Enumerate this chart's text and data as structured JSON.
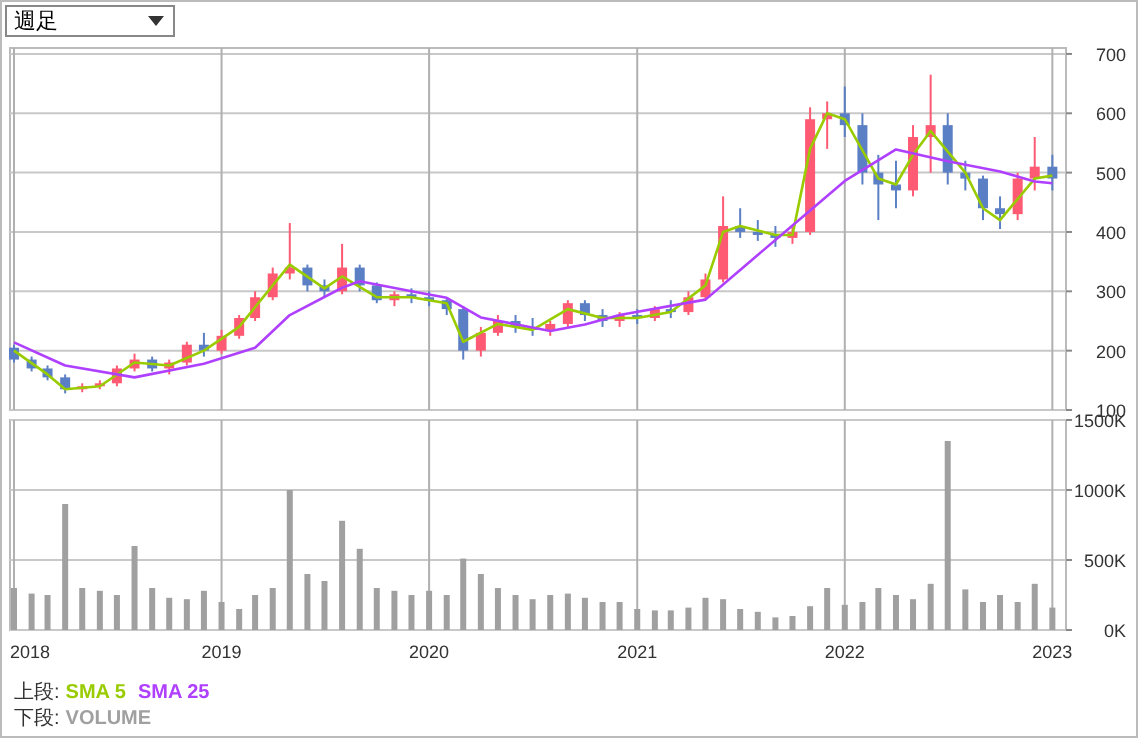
{
  "chart_data": [
    {
      "type": "candlestick",
      "annotations": [
        "週足"
      ],
      "legend": "bottom left",
      "legend_title": "上段:",
      "grid": true,
      "tick_labels": "y",
      "xlim": [
        "2017-12-25",
        "2023-01-25"
      ],
      "xticks": [
        {
          "value": "2018-01-01",
          "label": null
        },
        {
          "value": "2019-01-01",
          "label": null
        },
        {
          "value": "2020-01-01",
          "label": null
        },
        {
          "value": "2021-01-01",
          "label": null
        },
        {
          "value": "2022-01-01",
          "label": null
        },
        {
          "value": "2023-01-01",
          "label": null
        }
      ],
      "ylim": [
        100,
        710
      ],
      "yticks": [
        100,
        200,
        300,
        400,
        500,
        600,
        700
      ],
      "x": [
        "2018-01",
        "2018-02",
        "2018-03",
        "2018-04",
        "2018-05",
        "2018-06",
        "2018-07",
        "2018-08",
        "2018-09",
        "2018-10",
        "2018-11",
        "2018-12",
        "2019-01",
        "2019-02",
        "2019-03",
        "2019-04",
        "2019-05",
        "2019-06",
        "2019-07",
        "2019-08",
        "2019-09",
        "2019-10",
        "2019-11",
        "2019-12",
        "2020-01",
        "2020-02",
        "2020-03",
        "2020-04",
        "2020-05",
        "2020-06",
        "2020-07",
        "2020-08",
        "2020-09",
        "2020-10",
        "2020-11",
        "2020-12",
        "2021-01",
        "2021-02",
        "2021-03",
        "2021-04",
        "2021-05",
        "2021-06",
        "2021-07",
        "2021-08",
        "2021-09",
        "2021-10",
        "2021-11",
        "2021-12",
        "2022-01",
        "2022-02",
        "2022-03",
        "2022-04",
        "2022-05",
        "2022-06",
        "2022-07",
        "2022-08",
        "2022-09",
        "2022-10",
        "2022-11",
        "2022-12",
        "2023-01"
      ],
      "ohlc": [
        [
          205,
          210,
          180,
          185
        ],
        [
          185,
          190,
          165,
          170
        ],
        [
          170,
          175,
          150,
          155
        ],
        [
          155,
          160,
          128,
          135
        ],
        [
          135,
          145,
          130,
          140
        ],
        [
          140,
          150,
          135,
          145
        ],
        [
          145,
          175,
          140,
          170
        ],
        [
          170,
          195,
          165,
          185
        ],
        [
          185,
          190,
          165,
          170
        ],
        [
          170,
          185,
          160,
          180
        ],
        [
          180,
          215,
          175,
          210
        ],
        [
          210,
          230,
          190,
          200
        ],
        [
          200,
          235,
          195,
          225
        ],
        [
          225,
          260,
          220,
          255
        ],
        [
          255,
          300,
          250,
          290
        ],
        [
          290,
          340,
          285,
          330
        ],
        [
          330,
          415,
          320,
          340
        ],
        [
          340,
          345,
          300,
          310
        ],
        [
          310,
          320,
          290,
          300
        ],
        [
          300,
          380,
          295,
          340
        ],
        [
          340,
          345,
          300,
          310
        ],
        [
          310,
          315,
          280,
          285
        ],
        [
          285,
          300,
          275,
          295
        ],
        [
          295,
          305,
          280,
          290
        ],
        [
          290,
          300,
          275,
          285
        ],
        [
          285,
          290,
          260,
          270
        ],
        [
          270,
          275,
          185,
          200
        ],
        [
          200,
          240,
          190,
          230
        ],
        [
          230,
          260,
          225,
          250
        ],
        [
          250,
          260,
          230,
          240
        ],
        [
          240,
          255,
          225,
          235
        ],
        [
          235,
          250,
          225,
          245
        ],
        [
          245,
          285,
          240,
          280
        ],
        [
          280,
          285,
          250,
          260
        ],
        [
          260,
          270,
          240,
          250
        ],
        [
          250,
          265,
          240,
          260
        ],
        [
          260,
          270,
          245,
          255
        ],
        [
          255,
          275,
          250,
          270
        ],
        [
          270,
          285,
          255,
          265
        ],
        [
          265,
          300,
          260,
          290
        ],
        [
          290,
          330,
          285,
          320
        ],
        [
          320,
          460,
          315,
          410
        ],
        [
          410,
          440,
          390,
          400
        ],
        [
          400,
          420,
          385,
          395
        ],
        [
          395,
          410,
          375,
          390
        ],
        [
          390,
          410,
          380,
          400
        ],
        [
          400,
          610,
          395,
          590
        ],
        [
          590,
          620,
          540,
          600
        ],
        [
          600,
          645,
          560,
          580
        ],
        [
          580,
          600,
          480,
          500
        ],
        [
          500,
          530,
          420,
          480
        ],
        [
          480,
          520,
          440,
          470
        ],
        [
          470,
          580,
          460,
          560
        ],
        [
          560,
          665,
          500,
          580
        ],
        [
          580,
          600,
          480,
          500
        ],
        [
          500,
          520,
          470,
          490
        ],
        [
          490,
          495,
          420,
          440
        ],
        [
          440,
          460,
          405,
          430
        ],
        [
          430,
          500,
          420,
          490
        ],
        [
          490,
          560,
          470,
          510
        ],
        [
          510,
          530,
          470,
          490
        ]
      ],
      "colors": [
        "#5b7fc4",
        "#5b7fc4",
        "#5b7fc4",
        "#5b7fc4",
        "#ff5a73",
        "#ff5a73",
        "#ff5a73",
        "#ff5a73",
        "#5b7fc4",
        "#ff5a73",
        "#ff5a73",
        "#5b7fc4",
        "#ff5a73",
        "#ff5a73",
        "#ff5a73",
        "#ff5a73",
        "#ff5a73",
        "#5b7fc4",
        "#5b7fc4",
        "#ff5a73",
        "#5b7fc4",
        "#5b7fc4",
        "#ff5a73",
        "#5b7fc4",
        "#5b7fc4",
        "#5b7fc4",
        "#5b7fc4",
        "#ff5a73",
        "#ff5a73",
        "#5b7fc4",
        "#5b7fc4",
        "#ff5a73",
        "#ff5a73",
        "#5b7fc4",
        "#5b7fc4",
        "#ff5a73",
        "#5b7fc4",
        "#ff5a73",
        "#5b7fc4",
        "#ff5a73",
        "#ff5a73",
        "#ff5a73",
        "#5b7fc4",
        "#5b7fc4",
        "#5b7fc4",
        "#ff5a73",
        "#ff5a73",
        "#ff5a73",
        "#5b7fc4",
        "#5b7fc4",
        "#5b7fc4",
        "#5b7fc4",
        "#ff5a73",
        "#ff5a73",
        "#5b7fc4",
        "#5b7fc4",
        "#5b7fc4",
        "#5b7fc4",
        "#ff5a73",
        "#ff5a73",
        "#5b7fc4"
      ],
      "series": [
        {
          "name": "SMA 5",
          "type": "line",
          "color": "#99cc00",
          "x": [
            "2018-01",
            "2018-03",
            "2018-04",
            "2018-06",
            "2018-08",
            "2018-10",
            "2018-12",
            "2019-02",
            "2019-04",
            "2019-05",
            "2019-07",
            "2019-08",
            "2019-10",
            "2019-12",
            "2020-02",
            "2020-03",
            "2020-05",
            "2020-07",
            "2020-09",
            "2020-11",
            "2021-01",
            "2021-03",
            "2021-05",
            "2021-06",
            "2021-07",
            "2021-09",
            "2021-10",
            "2021-11",
            "2021-12",
            "2022-01",
            "2022-03",
            "2022-04",
            "2022-05",
            "2022-06",
            "2022-08",
            "2022-09",
            "2022-10",
            "2022-12",
            "2023-01"
          ],
          "values": [
            200,
            160,
            135,
            140,
            180,
            175,
            200,
            240,
            310,
            345,
            305,
            325,
            290,
            290,
            280,
            215,
            245,
            235,
            270,
            255,
            255,
            265,
            310,
            400,
            410,
            395,
            395,
            540,
            600,
            590,
            490,
            480,
            530,
            570,
            500,
            440,
            420,
            490,
            495
          ]
        },
        {
          "name": "SMA 25",
          "type": "line",
          "color": "#b040ff",
          "x": [
            "2018-01",
            "2018-04",
            "2018-08",
            "2018-12",
            "2019-03",
            "2019-05",
            "2019-08",
            "2019-09",
            "2019-12",
            "2020-02",
            "2020-04",
            "2020-08",
            "2020-10",
            "2020-12",
            "2021-05",
            "2021-07",
            "2021-10",
            "2022-01",
            "2022-04",
            "2022-07",
            "2022-10",
            "2022-12",
            "2023-01"
          ],
          "values": [
            214,
            175,
            155,
            178,
            205,
            260,
            306,
            317,
            300,
            289,
            256,
            233,
            244,
            260,
            286,
            336,
            411,
            486,
            539,
            519,
            502,
            485,
            482
          ]
        }
      ]
    },
    {
      "type": "bar",
      "legend": "bottom left",
      "legend_title": "下段:",
      "grid": true,
      "xlim": [
        "2017-12-25",
        "2023-01-25"
      ],
      "xticks": [
        {
          "value": "2018-01-01",
          "label": "2018"
        },
        {
          "value": "2019-01-01",
          "label": "2019"
        },
        {
          "value": "2020-01-01",
          "label": "2020"
        },
        {
          "value": "2021-01-01",
          "label": "2021"
        },
        {
          "value": "2022-01-01",
          "label": "2022"
        },
        {
          "value": "2023-01-01",
          "label": "2023"
        }
      ],
      "ylim": [
        0,
        1500
      ],
      "yticks": [
        {
          "value": 0,
          "label": "0K"
        },
        {
          "value": 500,
          "label": "500K"
        },
        {
          "value": 1000,
          "label": "1000K"
        },
        {
          "value": 1500,
          "label": "1500K"
        }
      ],
      "x": [
        "2018-01",
        "2018-02",
        "2018-03",
        "2018-04",
        "2018-05",
        "2018-06",
        "2018-07",
        "2018-08",
        "2018-09",
        "2018-10",
        "2018-11",
        "2018-12",
        "2019-01",
        "2019-02",
        "2019-03",
        "2019-04",
        "2019-05",
        "2019-06",
        "2019-07",
        "2019-08",
        "2019-09",
        "2019-10",
        "2019-11",
        "2019-12",
        "2020-01",
        "2020-02",
        "2020-03",
        "2020-04",
        "2020-05",
        "2020-06",
        "2020-07",
        "2020-08",
        "2020-09",
        "2020-10",
        "2020-11",
        "2020-12",
        "2021-01",
        "2021-02",
        "2021-03",
        "2021-04",
        "2021-05",
        "2021-06",
        "2021-07",
        "2021-08",
        "2021-09",
        "2021-10",
        "2021-11",
        "2021-12",
        "2022-01",
        "2022-02",
        "2022-03",
        "2022-04",
        "2022-05",
        "2022-06",
        "2022-07",
        "2022-08",
        "2022-09",
        "2022-10",
        "2022-11",
        "2022-12",
        "2023-01"
      ],
      "series": [
        {
          "name": "VOLUME",
          "color": "#a0a0a0",
          "values": [
            300,
            260,
            250,
            900,
            300,
            280,
            250,
            600,
            300,
            230,
            220,
            280,
            200,
            150,
            250,
            300,
            1000,
            400,
            350,
            780,
            580,
            300,
            280,
            250,
            280,
            250,
            510,
            400,
            300,
            250,
            220,
            250,
            260,
            230,
            200,
            200,
            150,
            140,
            140,
            160,
            230,
            220,
            150,
            130,
            90,
            100,
            170,
            300,
            180,
            200,
            300,
            250,
            220,
            330,
            1350,
            290,
            200,
            250,
            200,
            330,
            160
          ]
        }
      ]
    }
  ]
}
